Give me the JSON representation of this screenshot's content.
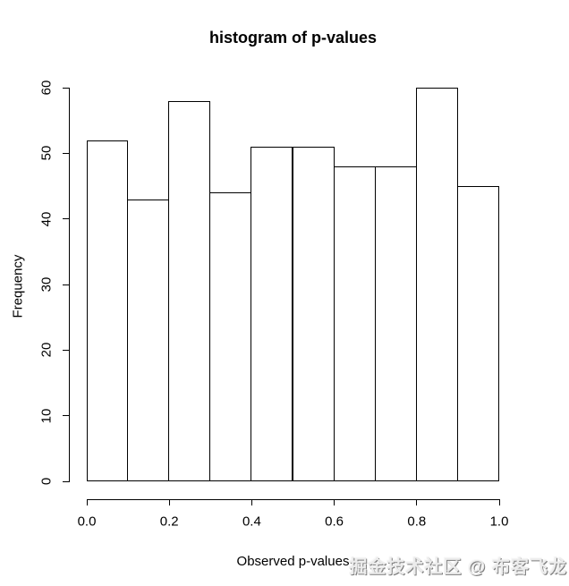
{
  "figure": {
    "title": "histogram of p-values",
    "xlabel": "Observed p-values",
    "ylabel": "Frequency",
    "watermark": "掘金技术社区 @ 布客飞龙"
  },
  "chart_data": {
    "type": "bar",
    "subtype": "histogram",
    "title": "histogram of p-values",
    "xlabel": "Observed p-values",
    "ylabel": "Frequency",
    "bin_edges": [
      0.0,
      0.1,
      0.2,
      0.3,
      0.4,
      0.5,
      0.6,
      0.7,
      0.8,
      0.9,
      1.0
    ],
    "values": [
      52,
      43,
      58,
      44,
      51,
      51,
      48,
      48,
      60,
      45
    ],
    "x_ticks": [
      "0.0",
      "0.2",
      "0.4",
      "0.6",
      "0.8",
      "1.0"
    ],
    "x_tick_values": [
      0.0,
      0.2,
      0.4,
      0.6,
      0.8,
      1.0
    ],
    "y_ticks": [
      "0",
      "10",
      "20",
      "30",
      "40",
      "50",
      "60"
    ],
    "y_tick_values": [
      0,
      10,
      20,
      30,
      40,
      50,
      60
    ],
    "xlim": [
      0,
      1
    ],
    "ylim": [
      0,
      60
    ],
    "grid": false,
    "bar_fill": "#ffffff",
    "bar_border": "#000000",
    "axis_color": "#000000"
  }
}
